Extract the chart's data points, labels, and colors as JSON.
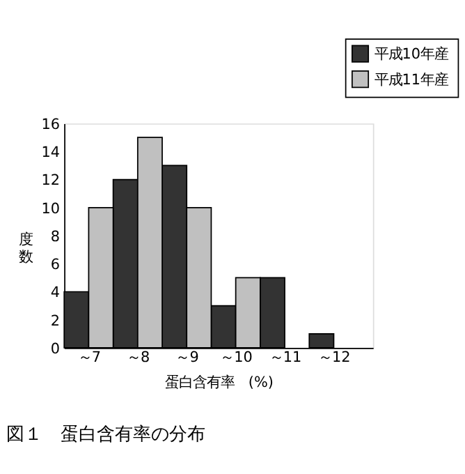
{
  "chart_data": {
    "type": "bar",
    "title": "図１　蛋白含有率の分布",
    "xlabel": "蛋白含有率　(%)",
    "ylabel": "度数",
    "categories": [
      "～7",
      "～8",
      "～9",
      "～10",
      "～11",
      "～12"
    ],
    "series": [
      {
        "name": "平成10年産",
        "color": "#333333",
        "values": [
          4,
          12,
          13,
          3,
          5,
          1
        ]
      },
      {
        "name": "平成11年産",
        "color": "#c0c0c0",
        "values": [
          10,
          15,
          10,
          5,
          null,
          null
        ]
      }
    ],
    "ylim": [
      0,
      16
    ],
    "yticks": [
      0,
      2,
      4,
      6,
      8,
      10,
      12,
      14,
      16
    ],
    "grid": false,
    "legend": "top right"
  }
}
